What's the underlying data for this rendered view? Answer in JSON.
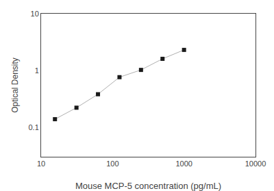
{
  "chart_data": {
    "type": "line",
    "x": [
      15.625,
      31.25,
      62.5,
      125,
      250,
      500,
      1000
    ],
    "series": [
      {
        "values": [
          0.138,
          0.22,
          0.38,
          0.76,
          1.02,
          1.6,
          2.3
        ],
        "color": "#b0b0b0",
        "colors": [
          "#1a1a1a",
          "#1a1a1a",
          "#1a1a1a",
          "#1a1a1a",
          "#1a1a1a",
          "#1a1a1a",
          "#1a1a1a"
        ],
        "marker": "square",
        "line_style": "solid"
      }
    ],
    "x_label": "Mouse MCP-5 concentration (pg/mL)",
    "y_label": "Optical Density",
    "log": true,
    "xlim": [
      10,
      10000
    ],
    "xticks": [
      10,
      100,
      1000,
      10000
    ],
    "ylim": [
      0.03,
      10
    ],
    "yticks": [
      0.1,
      1,
      10
    ],
    "grid": false
  }
}
